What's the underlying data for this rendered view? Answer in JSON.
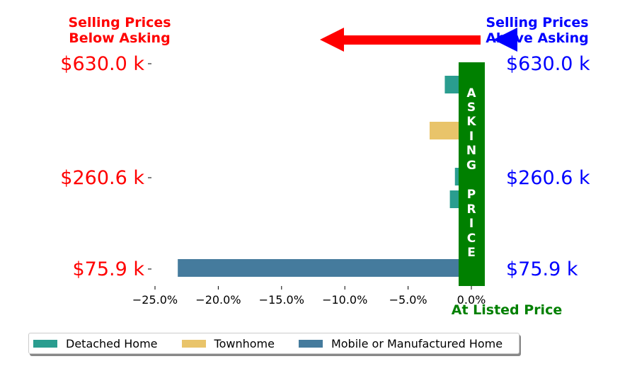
{
  "chart_data": {
    "type": "bar",
    "orientation": "horizontal",
    "x_range_pct": [
      -26.5,
      0.9
    ],
    "x_ticks": [
      -25,
      -20,
      -15,
      -10,
      -5,
      0
    ],
    "x_tick_labels": [
      "−25.0%",
      "−20.0%",
      "−15.0%",
      "−10.0%",
      "−5.0%",
      "0.0%"
    ],
    "y_tick_labels": [
      "$630.0 k",
      "$260.6 k",
      "$75.9 k"
    ],
    "left_label_color": "#ff0000",
    "right_label_color": "#0000ff",
    "bars": [
      {
        "series": "Detached Home",
        "value": -2.1
      },
      {
        "series": "Detached Home",
        "value": 0.1
      },
      {
        "series": "Townhome",
        "value": -3.3
      },
      {
        "series": "Detached Home",
        "value": 0.1
      },
      {
        "series": "Detached Home",
        "value": -1.3
      },
      {
        "series": "Detached Home",
        "value": -1.7
      },
      {
        "series": "Detached Home",
        "value": 0.1
      },
      {
        "series": "Detached Home",
        "value": -0.7
      },
      {
        "series": "Mobile or Manufactured Home",
        "value": -23.2
      }
    ],
    "series": [
      {
        "name": "Detached Home",
        "color": "#2a9d8f"
      },
      {
        "name": "Townhome",
        "color": "#e9c46a"
      },
      {
        "name": "Mobile or Manufactured Home",
        "color": "#457b9d"
      }
    ],
    "annotations": {
      "below_label_line1": "Selling Prices",
      "below_label_line2": "Below Asking",
      "above_label_line1": "Selling Prices",
      "above_label_line2": "Above Asking",
      "at_listed": "At Listed Price",
      "asking_price_text": "ASKING PRICE",
      "below_color": "#ff0000",
      "above_color": "#0000ff",
      "asking_color": "#008000"
    },
    "legend_placement": "bottom-left"
  }
}
